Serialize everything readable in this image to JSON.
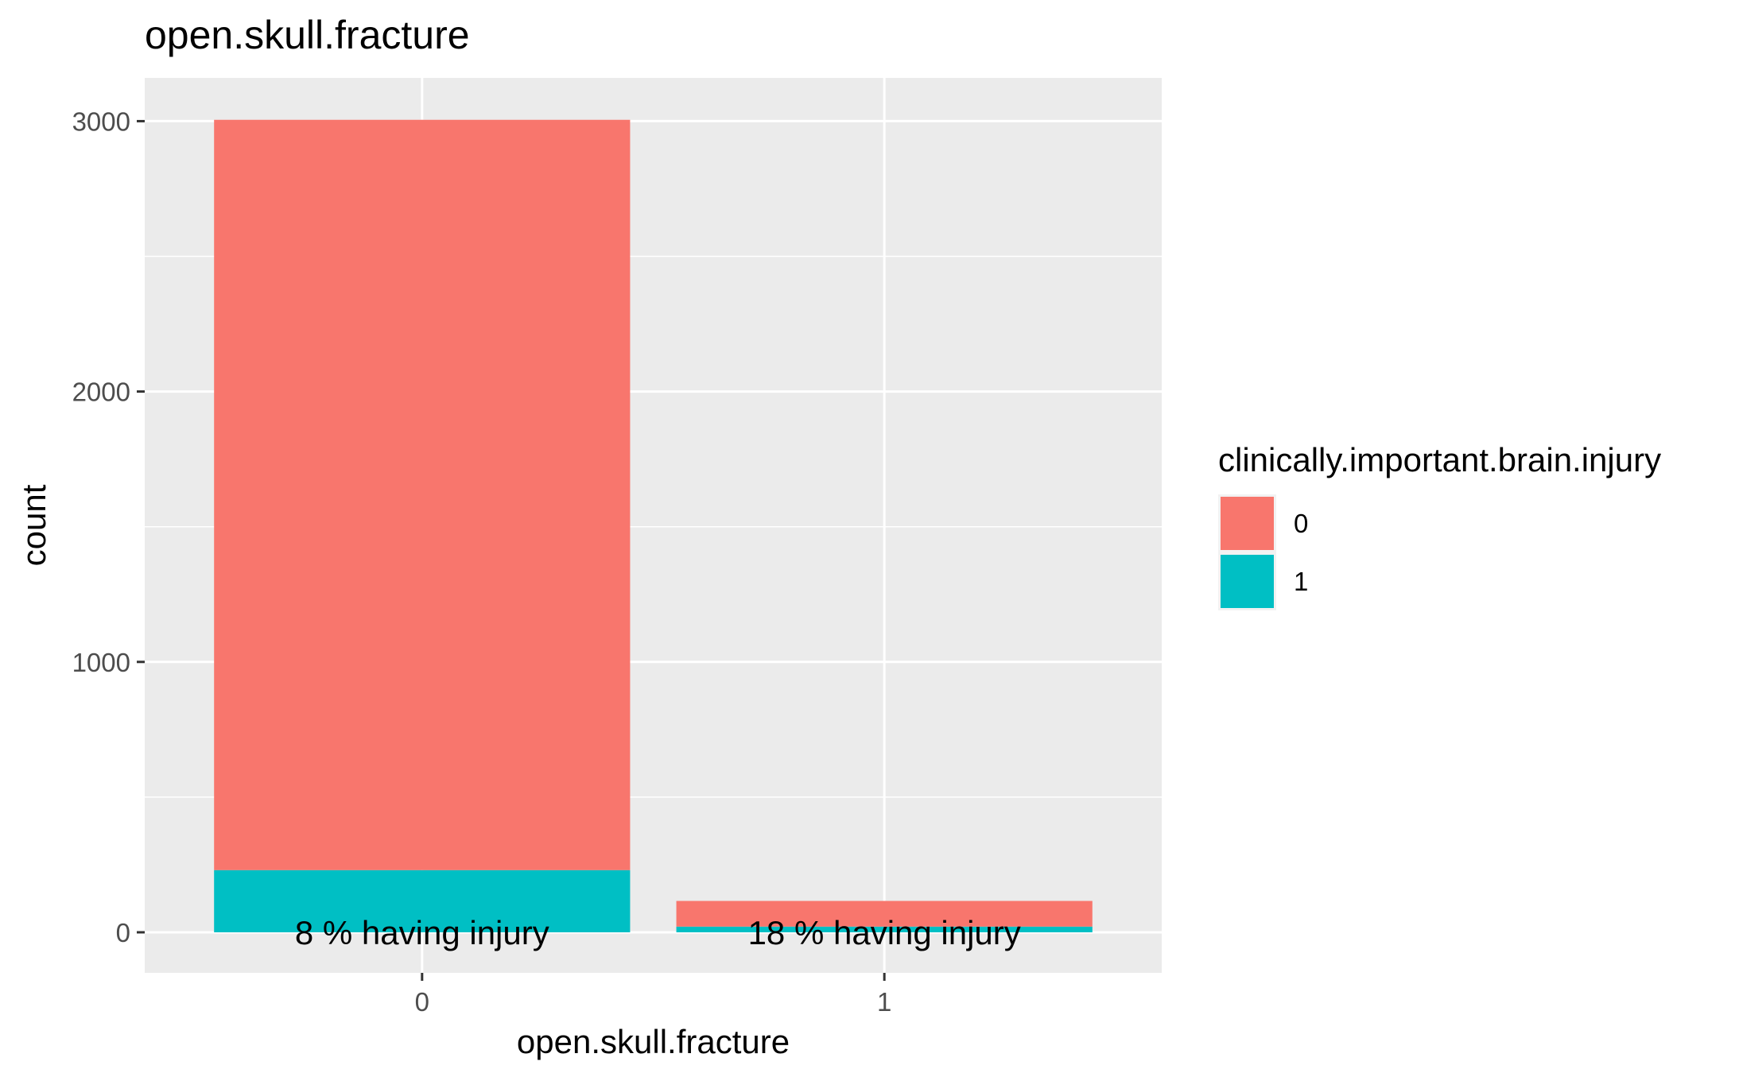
{
  "chart_data": {
    "type": "bar",
    "stacked": true,
    "title": "open.skull.fracture",
    "xlabel": "open.skull.fracture",
    "ylabel": "count",
    "categories": [
      "0",
      "1"
    ],
    "series": [
      {
        "name": "0",
        "values": [
          2775,
          95
        ],
        "color": "#F8766D"
      },
      {
        "name": "1",
        "values": [
          230,
          21
        ],
        "color": "#00BFC4"
      }
    ],
    "bar_labels": [
      "8 % having injury",
      "18 % having injury"
    ],
    "yticks": [
      0,
      1000,
      2000,
      3000
    ],
    "ylim": [
      -150,
      3160
    ],
    "grid": true,
    "panel_background": "#EBEBEB",
    "legend": {
      "title": "clinically.important.brain.injury",
      "position": "right",
      "entries": [
        "0",
        "1"
      ]
    }
  }
}
